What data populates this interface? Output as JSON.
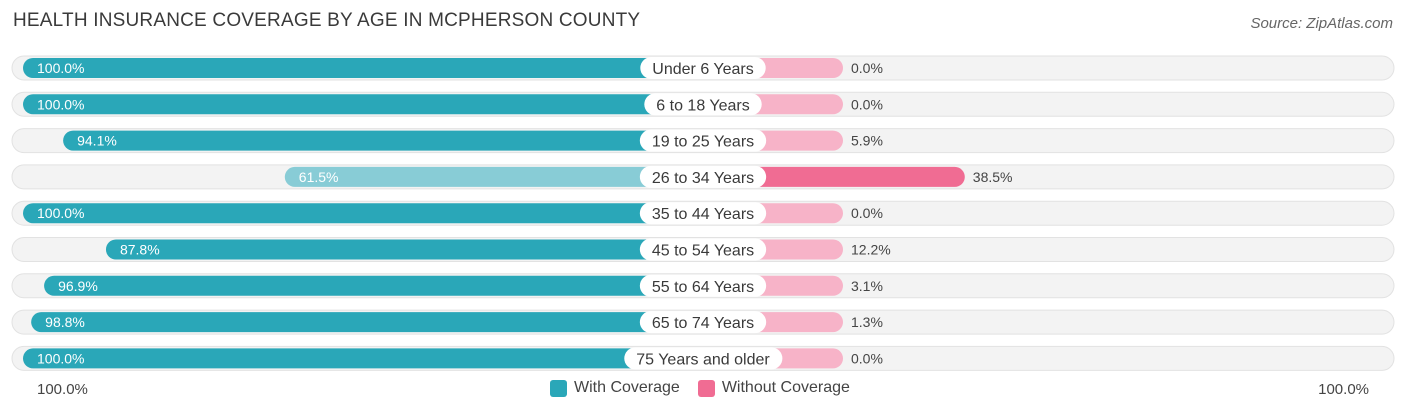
{
  "header": {
    "title": "HEALTH INSURANCE COVERAGE BY AGE IN MCPHERSON COUNTY",
    "source": "Source: ZipAtlas.com"
  },
  "colors": {
    "with_coverage": "#2aa7b8",
    "with_coverage_light": "#88ccd6",
    "without_coverage": "#f06c93",
    "without_coverage_light": "#f7b3c8",
    "track": "#efefef"
  },
  "chart_data": {
    "type": "bar",
    "orientation": "horizontal-diverging",
    "title": "HEALTH INSURANCE COVERAGE BY AGE IN MCPHERSON COUNTY",
    "categories": [
      "Under 6 Years",
      "6 to 18 Years",
      "19 to 25 Years",
      "26 to 34 Years",
      "35 to 44 Years",
      "45 to 54 Years",
      "55 to 64 Years",
      "65 to 74 Years",
      "75 Years and older"
    ],
    "series": [
      {
        "name": "With Coverage",
        "values": [
          100.0,
          100.0,
          94.1,
          61.5,
          100.0,
          87.8,
          96.9,
          98.8,
          100.0
        ],
        "labels": [
          "100.0%",
          "100.0%",
          "94.1%",
          "61.5%",
          "100.0%",
          "87.8%",
          "96.9%",
          "98.8%",
          "100.0%"
        ]
      },
      {
        "name": "Without Coverage",
        "values": [
          0.0,
          0.0,
          5.9,
          38.5,
          0.0,
          12.2,
          3.1,
          1.3,
          0.0
        ],
        "labels": [
          "0.0%",
          "0.0%",
          "5.9%",
          "38.5%",
          "0.0%",
          "12.2%",
          "3.1%",
          "1.3%",
          "0.0%"
        ]
      }
    ],
    "xlim": [
      0,
      100
    ],
    "axis_left_label": "100.0%",
    "axis_right_label": "100.0%",
    "legend_position": "bottom-center"
  }
}
